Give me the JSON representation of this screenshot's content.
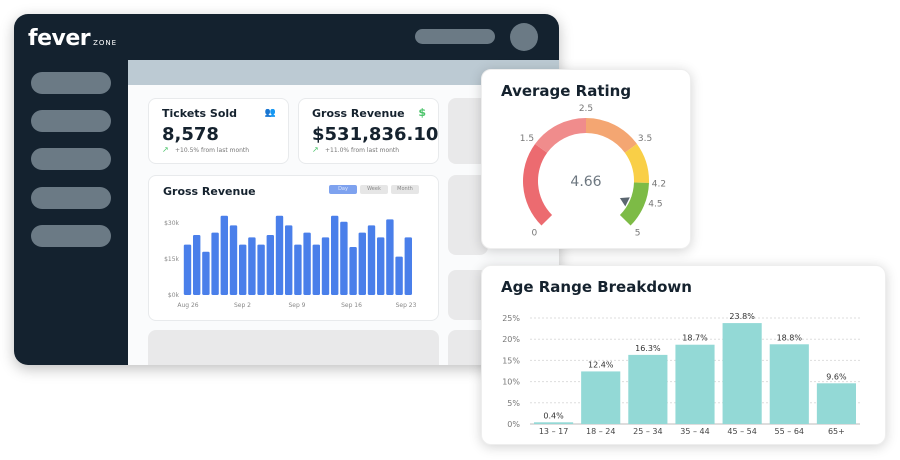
{
  "app": {
    "logo": "fever",
    "logo_sub": "ZONE"
  },
  "stats": [
    {
      "title": "Tickets Sold",
      "value": "8,578",
      "change": "+10.5% from last month",
      "icon": "users-icon"
    },
    {
      "title": "Gross Revenue",
      "value": "$531,836.10",
      "change": "+11.0% from last month",
      "icon": "dollar-icon"
    }
  ],
  "revenue_chart": {
    "title": "Gross Revenue",
    "toggles": [
      "Day",
      "Week",
      "Month"
    ],
    "active_toggle": "Day",
    "accent": "#4a7fea"
  },
  "rating": {
    "title": "Average Rating",
    "value": "4.66",
    "labels": [
      "0",
      "1.5",
      "2.5",
      "3.5",
      "4.2",
      "4.5",
      "5"
    ]
  },
  "age": {
    "title": "Age Range Breakdown"
  },
  "chart_data": [
    {
      "type": "bar",
      "title": "Gross Revenue",
      "ylim": [
        0,
        35000
      ],
      "yticks": [
        "$0k",
        "$15k",
        "$30k"
      ],
      "xticks": [
        "Aug 26",
        "Sep 2",
        "Sep 9",
        "Sep 16",
        "Sep 23"
      ],
      "values": [
        21000,
        25000,
        18000,
        26000,
        33000,
        29000,
        21000,
        24000,
        21000,
        25000,
        33000,
        29000,
        21000,
        26000,
        21000,
        24000,
        33000,
        30500,
        20000,
        26000,
        29000,
        24000,
        31500,
        16000,
        24000
      ]
    },
    {
      "type": "gauge",
      "title": "Average Rating",
      "range": [
        0,
        5
      ],
      "value": 4.66,
      "bands": [
        {
          "from": 0,
          "to": 1.5,
          "color": "#ec6b70"
        },
        {
          "from": 1.5,
          "to": 2.5,
          "color": "#f08c8c"
        },
        {
          "from": 2.5,
          "to": 3.5,
          "color": "#f4a672"
        },
        {
          "from": 3.5,
          "to": 4.2,
          "color": "#f9cf47"
        },
        {
          "from": 4.2,
          "to": 5,
          "color": "#7dbb46"
        }
      ]
    },
    {
      "type": "bar",
      "title": "Age Range Breakdown",
      "categories": [
        "13 – 17",
        "18 – 24",
        "25 – 34",
        "35 – 44",
        "45 – 54",
        "55 – 64",
        "65+"
      ],
      "values": [
        0.4,
        12.4,
        16.3,
        18.7,
        23.8,
        18.8,
        9.6
      ],
      "labels": [
        "0.4%",
        "12.4%",
        "16.3%",
        "18.7%",
        "23.8%",
        "18.8%",
        "9.6%"
      ],
      "yticks": [
        "0%",
        "5%",
        "10%",
        "15%",
        "20%",
        "25%"
      ],
      "ylim": [
        0,
        25
      ],
      "color": "#93d9d6",
      "grid": true
    }
  ]
}
